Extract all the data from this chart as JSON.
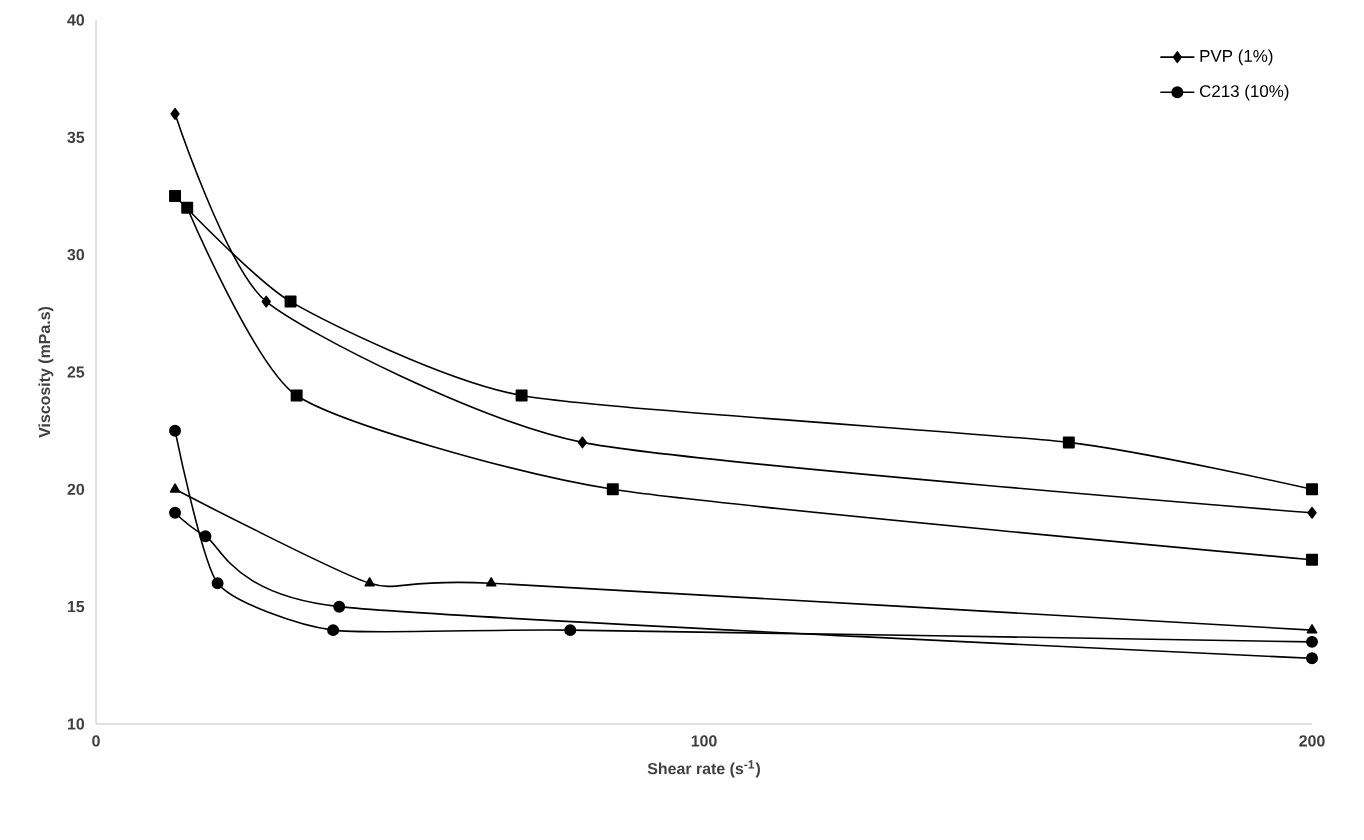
{
  "chart_data": {
    "type": "line",
    "xlabel": "Shear rate (s$^{-1}$)",
    "ylabel": "Viscosity (mPa.s)",
    "xlim": [
      0,
      200
    ],
    "xticks": [
      0,
      100,
      200
    ],
    "ylim": [
      10,
      40
    ],
    "yticks": [
      10,
      15,
      20,
      25,
      30,
      35,
      40
    ],
    "grid": false,
    "legend": "top right",
    "line_style": "solid",
    "series": [
      {
        "color": "#000000",
        "marker": "square",
        "x": [
          13,
          32,
          70,
          160,
          200
        ],
        "values": [
          32.5,
          28,
          24,
          22,
          20
        ]
      },
      {
        "color": "#000000",
        "marker": "triangle",
        "x": [
          13,
          45,
          65,
          200
        ],
        "values": [
          20,
          16,
          16,
          14
        ]
      },
      {
        "color": "#000000",
        "marker": "square",
        "x": [
          15,
          33,
          85,
          200
        ],
        "values": [
          32,
          24,
          20,
          17
        ]
      },
      {
        "name": "PVP (1%)",
        "color": "#000000",
        "marker": "diamond",
        "x": [
          13,
          28,
          80,
          200
        ],
        "values": [
          36,
          28,
          22,
          19
        ]
      },
      {
        "name": "C213 (10%)",
        "color": "#000000",
        "marker": "circle",
        "x": [
          13,
          20,
          39,
          78,
          200
        ],
        "values": [
          22.5,
          16,
          14,
          14,
          13.5
        ]
      },
      {
        "color": "#000000",
        "marker": "circle",
        "x": [
          13,
          18,
          40,
          200
        ],
        "values": [
          19,
          18,
          15,
          12.8
        ]
      }
    ]
  }
}
